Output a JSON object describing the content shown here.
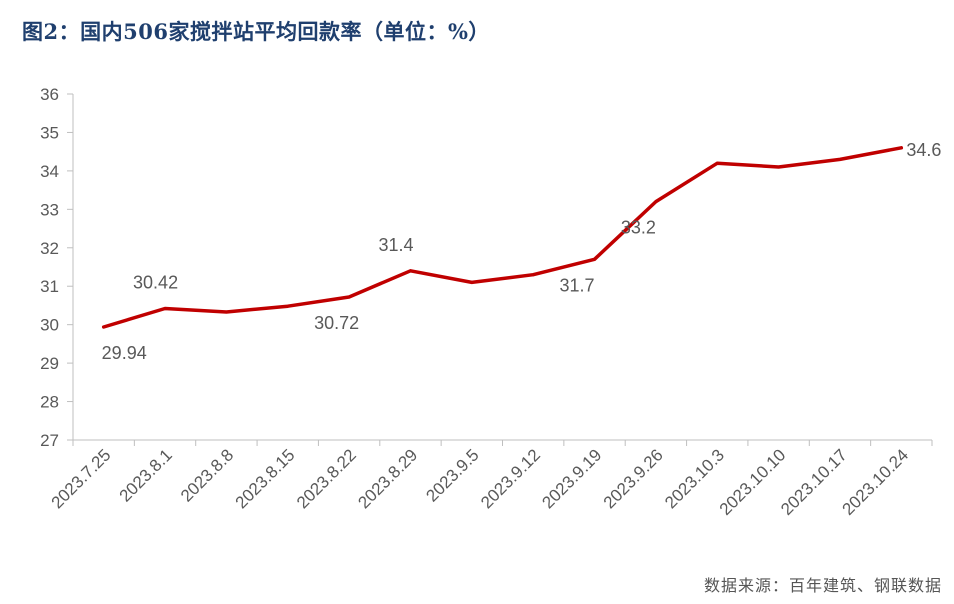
{
  "title": "图2：国内506家搅拌站平均回款率（单位：%）",
  "source": "数据来源：百年建筑、钢联数据",
  "chart_data": {
    "type": "line",
    "title": "图2：国内506家搅拌站平均回款率（单位：%）",
    "xlabel": "",
    "ylabel": "",
    "ylim": [
      27,
      36
    ],
    "yticks": [
      27,
      28,
      29,
      30,
      31,
      32,
      33,
      34,
      35,
      36
    ],
    "categories": [
      "2023.7.25",
      "2023.8.1",
      "2023.8.8",
      "2023.8.15",
      "2023.8.22",
      "2023.8.29",
      "2023.9.5",
      "2023.9.12",
      "2023.9.19",
      "2023.9.26",
      "2023.10.3",
      "2023.10.10",
      "2023.10.17",
      "2023.10.24"
    ],
    "series": [
      {
        "name": "",
        "color": "#c00000",
        "values": [
          29.94,
          30.42,
          30.33,
          30.48,
          30.72,
          31.4,
          31.1,
          31.3,
          31.7,
          33.2,
          34.2,
          34.1,
          34.3,
          34.6
        ]
      }
    ],
    "data_labels": [
      {
        "index": 0,
        "text": "29.94",
        "placement": "below"
      },
      {
        "index": 1,
        "text": "30.42",
        "placement": "above"
      },
      {
        "index": 4,
        "text": "30.72",
        "placement": "below-right"
      },
      {
        "index": 5,
        "text": "31.4",
        "placement": "above"
      },
      {
        "index": 8,
        "text": "31.7",
        "placement": "below-right"
      },
      {
        "index": 9,
        "text": "33.2",
        "placement": "below-right"
      },
      {
        "index": 13,
        "text": "34.6",
        "placement": "right"
      }
    ],
    "grid": false,
    "legend": "none"
  }
}
